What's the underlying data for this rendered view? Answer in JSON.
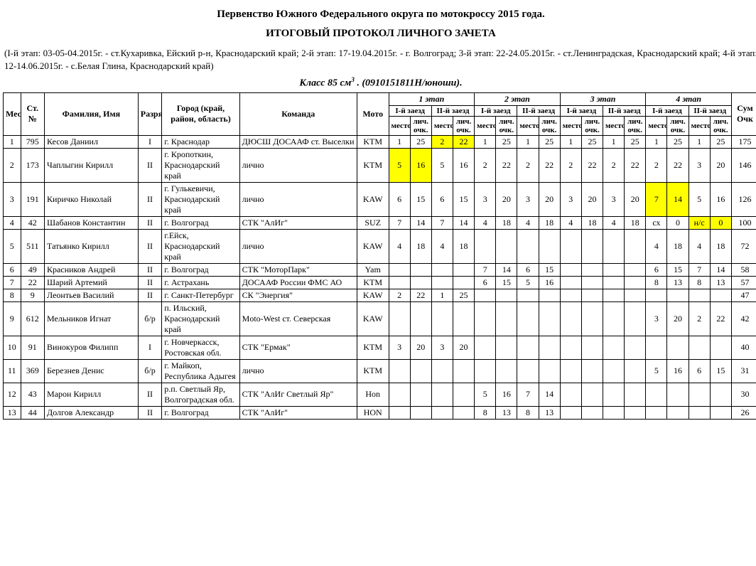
{
  "title": "Первенство Южного Федерального округа по мотокроссу 2015 года.",
  "subtitle": "ИТОГОВЫЙ ПРОТОКОЛ ЛИЧНОГО ЗАЧЕТА",
  "stages_text": "(I-й этап: 03-05-04.2015г.  -  ст.Кухаривка, Ейский р-н, Краснодарский край; 2-й этап: 17-19.04.2015г. - г. Волгоград; 3-й этап: 22-24.05.2015г.  -  ст.Ленинградская, Краснодарский край; 4-й этап: 12-14.06.2015г.  -  с.Белая Глина, Краснодарский край)",
  "class_label_prefix": "Класс 85 см",
  "class_code": ". (0910151811Н/юноши).",
  "headers": {
    "place": "Место",
    "stno": "Ст. №",
    "name": "Фамилия,  Имя",
    "rank": "Разряд",
    "city": "Город (край, район, область)",
    "team": "Команда",
    "moto": "Мото",
    "stage1": "1 этап",
    "stage2": "2 этап",
    "stage3": "3 этап",
    "stage4": "4 этап",
    "heat1": "I-й заезд",
    "heat2": "II-й заезд",
    "mesto": "место",
    "lich": "лич. очк.",
    "sum": "Сум Очк"
  },
  "highlight_color": "#ffff00",
  "rows": [
    {
      "place": "1",
      "stno": "795",
      "name": "Кесов Даниил",
      "rank": "I",
      "city": "г. Краснодар",
      "team": "ДЮСШ ДОСААФ ст. Выселки",
      "moto": "KTM",
      "c": [
        "1",
        "25",
        "2",
        "22",
        "1",
        "25",
        "1",
        "25",
        "1",
        "25",
        "1",
        "25",
        "1",
        "25",
        "1",
        "25"
      ],
      "hl": [
        0,
        0,
        1,
        1,
        0,
        0,
        0,
        0,
        0,
        0,
        0,
        0,
        0,
        0,
        0,
        0
      ],
      "sum": "175"
    },
    {
      "place": "2",
      "stno": "173",
      "name": "Чаплыгин Кирилл",
      "rank": "II",
      "city": "г. Кропоткин, Краснодарский край",
      "team": "лично",
      "moto": "KTM",
      "c": [
        "5",
        "16",
        "5",
        "16",
        "2",
        "22",
        "2",
        "22",
        "2",
        "22",
        "2",
        "22",
        "2",
        "22",
        "3",
        "20"
      ],
      "hl": [
        1,
        1,
        0,
        0,
        0,
        0,
        0,
        0,
        0,
        0,
        0,
        0,
        0,
        0,
        0,
        0
      ],
      "sum": "146"
    },
    {
      "place": "3",
      "stno": "191",
      "name": "Киричко Николай",
      "rank": "II",
      "city": "г. Гулькевичи, Краснодарский край",
      "team": "лично",
      "moto": "KAW",
      "c": [
        "6",
        "15",
        "6",
        "15",
        "3",
        "20",
        "3",
        "20",
        "3",
        "20",
        "3",
        "20",
        "7",
        "14",
        "5",
        "16"
      ],
      "hl": [
        0,
        0,
        0,
        0,
        0,
        0,
        0,
        0,
        0,
        0,
        0,
        0,
        1,
        1,
        0,
        0
      ],
      "sum": "126"
    },
    {
      "place": "4",
      "stno": "42",
      "name": "Шабанов Константин",
      "rank": "II",
      "city": "г. Волгоград",
      "team": "СТК \"АлИг\"",
      "moto": "SUZ",
      "c": [
        "7",
        "14",
        "7",
        "14",
        "4",
        "18",
        "4",
        "18",
        "4",
        "18",
        "4",
        "18",
        "сх",
        "0",
        "н/с",
        "0"
      ],
      "hl": [
        0,
        0,
        0,
        0,
        0,
        0,
        0,
        0,
        0,
        0,
        0,
        0,
        0,
        0,
        1,
        1
      ],
      "sum": "100"
    },
    {
      "place": "5",
      "stno": "511",
      "name": "Татьянко Кирилл",
      "rank": "II",
      "city": "г.Ейск, Краснодарский край",
      "team": "лично",
      "moto": "KAW",
      "c": [
        "4",
        "18",
        "4",
        "18",
        "",
        "",
        "",
        "",
        "",
        "",
        "",
        "",
        "4",
        "18",
        "4",
        "18"
      ],
      "hl": [
        0,
        0,
        0,
        0,
        0,
        0,
        0,
        0,
        0,
        0,
        0,
        0,
        0,
        0,
        0,
        0
      ],
      "sum": "72"
    },
    {
      "place": "6",
      "stno": "49",
      "name": "Красников Андрей",
      "rank": "II",
      "city": "г. Волгоград",
      "team": "СТК \"МоторПарк\"",
      "moto": "Yam",
      "c": [
        "",
        "",
        "",
        "",
        "7",
        "14",
        "6",
        "15",
        "",
        "",
        "",
        "",
        "6",
        "15",
        "7",
        "14"
      ],
      "hl": [
        0,
        0,
        0,
        0,
        0,
        0,
        0,
        0,
        0,
        0,
        0,
        0,
        0,
        0,
        0,
        0
      ],
      "sum": "58"
    },
    {
      "place": "7",
      "stno": "22",
      "name": "Шарий Артемий",
      "rank": "II",
      "city": "г. Астрахань",
      "team": "ДОСААФ России ФМС АО",
      "moto": "KTM",
      "c": [
        "",
        "",
        "",
        "",
        "6",
        "15",
        "5",
        "16",
        "",
        "",
        "",
        "",
        "8",
        "13",
        "8",
        "13"
      ],
      "hl": [
        0,
        0,
        0,
        0,
        0,
        0,
        0,
        0,
        0,
        0,
        0,
        0,
        0,
        0,
        0,
        0
      ],
      "sum": "57"
    },
    {
      "place": "8",
      "stno": "9",
      "name": "Леонтьев Василий",
      "rank": "II",
      "city": "г. Санкт-Петербург",
      "team": "СК \"Энергия\"",
      "moto": "KAW",
      "c": [
        "2",
        "22",
        "1",
        "25",
        "",
        "",
        "",
        "",
        "",
        "",
        "",
        "",
        "",
        "",
        "",
        ""
      ],
      "hl": [
        0,
        0,
        0,
        0,
        0,
        0,
        0,
        0,
        0,
        0,
        0,
        0,
        0,
        0,
        0,
        0
      ],
      "sum": "47"
    },
    {
      "place": "9",
      "stno": "612",
      "name": "Мельников Игнат",
      "rank": "б/р",
      "city": "п. Ильский, Краснодарский край",
      "team": "Moto-West ст. Северская",
      "moto": "KAW",
      "c": [
        "",
        "",
        "",
        "",
        "",
        "",
        "",
        "",
        "",
        "",
        "",
        "",
        "3",
        "20",
        "2",
        "22"
      ],
      "hl": [
        0,
        0,
        0,
        0,
        0,
        0,
        0,
        0,
        0,
        0,
        0,
        0,
        0,
        0,
        0,
        0
      ],
      "sum": "42"
    },
    {
      "place": "10",
      "stno": "91",
      "name": "Винокуров Филипп",
      "rank": "I",
      "city": "г. Новчеркасск, Ростовская обл.",
      "team": "СТК \"Ермак\"",
      "moto": "KTM",
      "c": [
        "3",
        "20",
        "3",
        "20",
        "",
        "",
        "",
        "",
        "",
        "",
        "",
        "",
        "",
        "",
        "",
        ""
      ],
      "hl": [
        0,
        0,
        0,
        0,
        0,
        0,
        0,
        0,
        0,
        0,
        0,
        0,
        0,
        0,
        0,
        0
      ],
      "sum": "40"
    },
    {
      "place": "11",
      "stno": "369",
      "name": "Березнев Денис",
      "rank": "б/р",
      "city": "г. Майкоп, Республика Адыгея",
      "team": "лично",
      "moto": "KTM",
      "c": [
        "",
        "",
        "",
        "",
        "",
        "",
        "",
        "",
        "",
        "",
        "",
        "",
        "5",
        "16",
        "6",
        "15"
      ],
      "hl": [
        0,
        0,
        0,
        0,
        0,
        0,
        0,
        0,
        0,
        0,
        0,
        0,
        0,
        0,
        0,
        0
      ],
      "sum": "31"
    },
    {
      "place": "12",
      "stno": "43",
      "name": "Марон Кирилл",
      "rank": "II",
      "city": "р.п. Светлый Яр, Волгоградская обл.",
      "team": "СТК \"АлИг Светлый Яр\"",
      "moto": "Hon",
      "c": [
        "",
        "",
        "",
        "",
        "5",
        "16",
        "7",
        "14",
        "",
        "",
        "",
        "",
        "",
        "",
        "",
        ""
      ],
      "hl": [
        0,
        0,
        0,
        0,
        0,
        0,
        0,
        0,
        0,
        0,
        0,
        0,
        0,
        0,
        0,
        0
      ],
      "sum": "30"
    },
    {
      "place": "13",
      "stno": "44",
      "name": "Долгов Александр",
      "rank": "II",
      "city": "г. Волгоград",
      "team": "СТК \"АлИг\"",
      "moto": "HON",
      "c": [
        "",
        "",
        "",
        "",
        "8",
        "13",
        "8",
        "13",
        "",
        "",
        "",
        "",
        "",
        "",
        "",
        ""
      ],
      "hl": [
        0,
        0,
        0,
        0,
        0,
        0,
        0,
        0,
        0,
        0,
        0,
        0,
        0,
        0,
        0,
        0
      ],
      "sum": "26"
    }
  ]
}
